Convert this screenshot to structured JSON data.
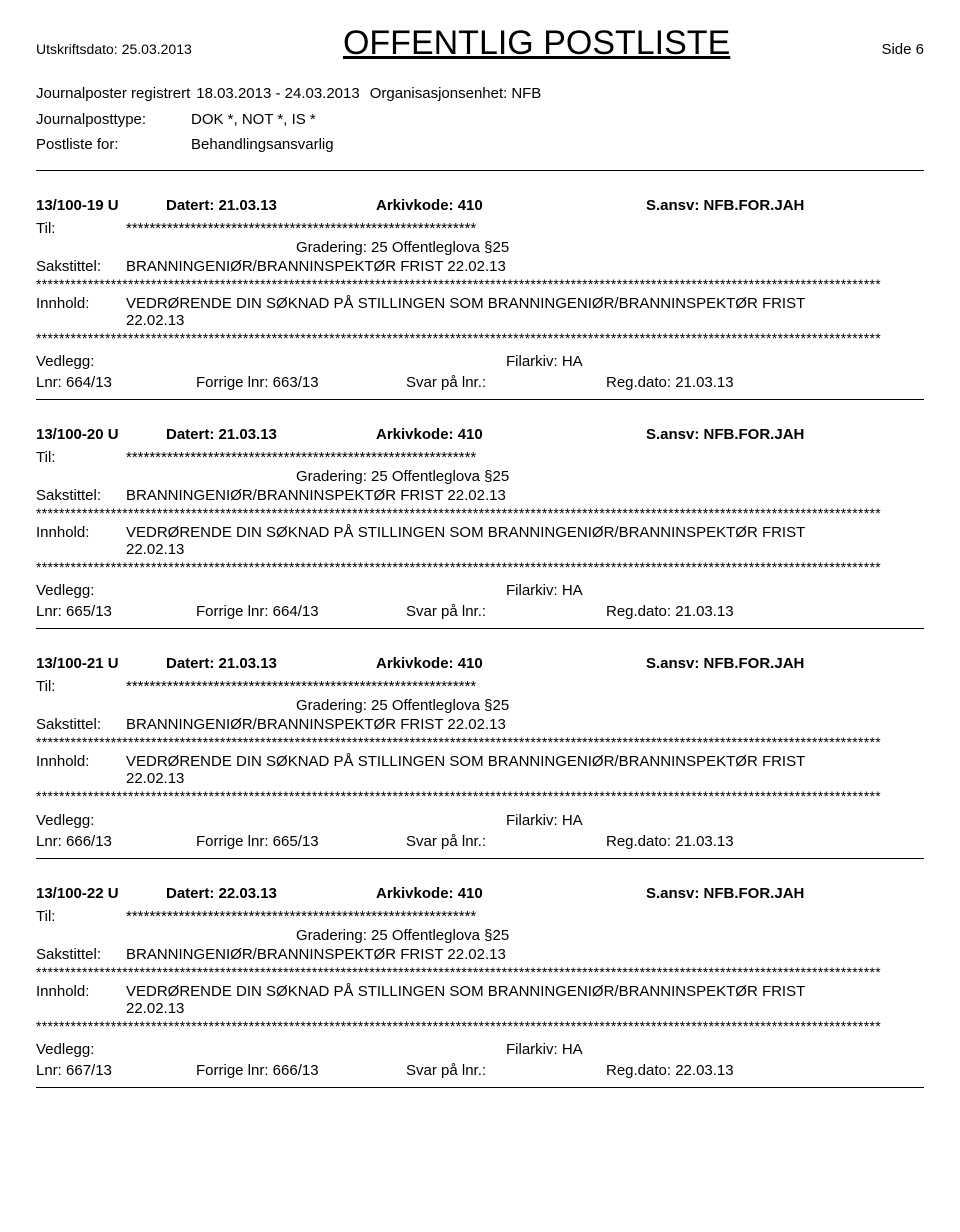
{
  "header": {
    "print_date_label": "Utskriftsdato:",
    "print_date_value": "25.03.2013",
    "title": "OFFENTLIG POSTLISTE",
    "page_side": "Side 6"
  },
  "filters": {
    "journal_label": "Journalposter registrert",
    "journal_range": "18.03.2013 - 24.03.2013",
    "org_label": "Organisasjonsenhet:",
    "org_value": "NFB",
    "posttype_label": "Journalposttype:",
    "posttype_value": "DOK *, NOT *, IS *",
    "postliste_label": "Postliste for:",
    "postliste_value": "Behandlingsansvarlig"
  },
  "labels": {
    "til": "Til:",
    "sakstittel": "Sakstittel:",
    "innhold": "Innhold:",
    "vedlegg": "Vedlegg:",
    "filarkiv": "Filarkiv: HA",
    "gradering": "Gradering: 25 Offentleglova §25",
    "datert_prefix": "Datert:",
    "arkiv_prefix": "Arkivkode:",
    "ansv_prefix": "S.ansv:",
    "lnr_prefix": "Lnr:",
    "forrige_prefix": "Forrige lnr:",
    "svar_label": "Svar på lnr.:",
    "regdato_prefix": "Reg.dato:"
  },
  "stars_short": "************************************************************",
  "stars_long": "***************************************************************************************************************************************************",
  "entries": [
    {
      "id": "13/100-19 U",
      "datert": "21.03.13",
      "arkivkode": "410",
      "ansv": "NFB.FOR.JAH",
      "sakstittel": "BRANNINGENIØR/BRANNINSPEKTØR FRIST 22.02.13",
      "innhold_line1": "VEDRØRENDE DIN SØKNAD PÅ STILLINGEN SOM BRANNINGENIØR/BRANNINSPEKTØR FRIST",
      "innhold_line2": "22.02.13",
      "lnr": "664/13",
      "forrige": "663/13",
      "regdato": "21.03.13"
    },
    {
      "id": "13/100-20 U",
      "datert": "21.03.13",
      "arkivkode": "410",
      "ansv": "NFB.FOR.JAH",
      "sakstittel": "BRANNINGENIØR/BRANNINSPEKTØR FRIST 22.02.13",
      "innhold_line1": "VEDRØRENDE DIN SØKNAD PÅ STILLINGEN SOM BRANNINGENIØR/BRANNINSPEKTØR FRIST",
      "innhold_line2": "22.02.13",
      "lnr": "665/13",
      "forrige": "664/13",
      "regdato": "21.03.13"
    },
    {
      "id": "13/100-21 U",
      "datert": "21.03.13",
      "arkivkode": "410",
      "ansv": "NFB.FOR.JAH",
      "sakstittel": "BRANNINGENIØR/BRANNINSPEKTØR FRIST 22.02.13",
      "innhold_line1": "VEDRØRENDE DIN SØKNAD PÅ STILLINGEN SOM BRANNINGENIØR/BRANNINSPEKTØR FRIST",
      "innhold_line2": "22.02.13",
      "lnr": "666/13",
      "forrige": "665/13",
      "regdato": "21.03.13"
    },
    {
      "id": "13/100-22 U",
      "datert": "22.03.13",
      "arkivkode": "410",
      "ansv": "NFB.FOR.JAH",
      "sakstittel": "BRANNINGENIØR/BRANNINSPEKTØR FRIST 22.02.13",
      "innhold_line1": "VEDRØRENDE DIN SØKNAD PÅ STILLINGEN SOM BRANNINGENIØR/BRANNINSPEKTØR FRIST",
      "innhold_line2": "22.02.13",
      "lnr": "667/13",
      "forrige": "666/13",
      "regdato": "22.03.13"
    }
  ]
}
